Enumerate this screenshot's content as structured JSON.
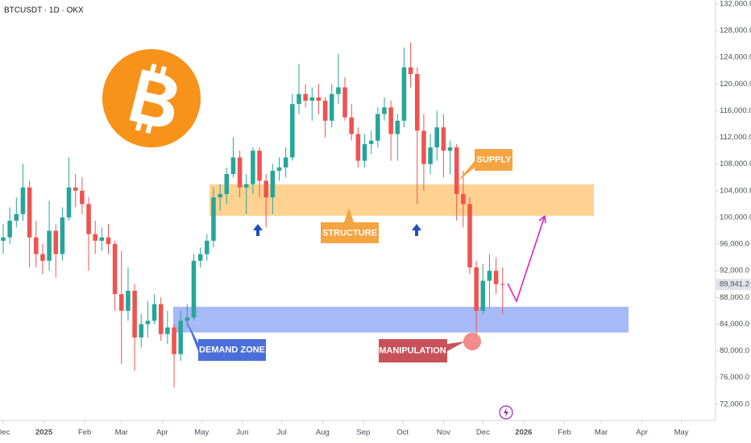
{
  "chart_data": {
    "type": "candlestick",
    "title": "BTCUSDT · 1D · OKX",
    "categories": [
      null,
      null,
      null,
      null,
      null,
      null,
      null,
      null,
      null,
      null,
      null,
      null,
      null,
      null,
      null,
      null,
      null,
      null,
      null,
      null,
      null,
      null,
      null,
      null,
      null,
      null,
      null,
      null,
      null,
      null,
      null,
      null,
      null,
      null,
      null,
      null,
      null,
      null,
      null,
      null,
      null,
      null,
      null,
      null,
      null,
      null,
      null,
      null,
      null,
      null,
      null,
      null,
      null,
      null,
      null,
      null,
      null,
      null,
      null,
      null,
      null,
      null,
      null,
      null,
      null,
      null,
      null,
      null,
      null,
      null,
      null,
      null,
      null,
      null,
      null,
      null,
      null
    ],
    "open": [
      96500,
      97000,
      99500,
      100500,
      104500,
      97000,
      94500,
      93500,
      98000,
      94500,
      100000,
      104500,
      104000,
      102000,
      97500,
      96500,
      97000,
      96000,
      88500,
      86000,
      89000,
      82000,
      84000,
      84500,
      87000,
      82500,
      83500,
      79500,
      84500,
      85000,
      93500,
      94500,
      96500,
      103000,
      103500,
      106500,
      109000,
      104500,
      105000,
      110000,
      105500,
      103000,
      107000,
      107500,
      109000,
      117000,
      118500,
      117500,
      118000,
      117500,
      114500,
      118500,
      119500,
      115000,
      112500,
      108500,
      111000,
      111500,
      115500,
      116500,
      112500,
      114500,
      122500,
      121500,
      113000,
      108000,
      110500,
      113500,
      110000,
      110500,
      103500,
      102000,
      92500,
      86000,
      90500,
      92000,
      90000
    ],
    "high": [
      99000,
      101500,
      103000,
      108000,
      105500,
      99500,
      96000,
      102500,
      99000,
      101500,
      109000,
      106500,
      106000,
      103000,
      99500,
      98500,
      99000,
      96500,
      95000,
      92500,
      90000,
      85500,
      87500,
      88500,
      88000,
      86000,
      84000,
      86000,
      87000,
      94500,
      95500,
      97500,
      104500,
      105000,
      107500,
      112000,
      110000,
      106500,
      110500,
      110500,
      106500,
      108000,
      109000,
      110500,
      118500,
      123000,
      120000,
      119500,
      120000,
      118000,
      120000,
      124500,
      121000,
      117000,
      113500,
      112500,
      113000,
      116500,
      118000,
      117500,
      115500,
      125500,
      126200,
      122500,
      115500,
      112500,
      116000,
      115500,
      111500,
      111000,
      107000,
      103000,
      93500,
      93000,
      94500,
      94000,
      92500
    ],
    "low": [
      94500,
      96000,
      98500,
      99500,
      92500,
      92500,
      91500,
      92000,
      91000,
      93500,
      99500,
      101500,
      100500,
      92000,
      94500,
      95000,
      94500,
      86000,
      78000,
      84500,
      77000,
      80500,
      82000,
      84000,
      81500,
      81000,
      74500,
      78500,
      83500,
      84500,
      92500,
      93500,
      95500,
      101000,
      102000,
      106000,
      103000,
      100500,
      103500,
      103000,
      98500,
      100500,
      105500,
      106000,
      108500,
      115500,
      116500,
      114500,
      115500,
      112000,
      113500,
      117000,
      114500,
      111500,
      107500,
      107500,
      109500,
      110500,
      114500,
      108500,
      108500,
      113500,
      119500,
      102000,
      104000,
      106500,
      108500,
      106000,
      106500,
      99500,
      98500,
      91500,
      81000,
      85500,
      86500,
      88500,
      85500
    ],
    "close": [
      97000,
      99500,
      100500,
      104500,
      97000,
      94500,
      93500,
      98000,
      94500,
      100000,
      104500,
      104000,
      102000,
      97500,
      96500,
      97000,
      96000,
      88500,
      86000,
      89000,
      82000,
      84000,
      84500,
      87000,
      82500,
      83500,
      79500,
      84500,
      85000,
      93500,
      94500,
      96500,
      103000,
      103500,
      106500,
      109000,
      104500,
      105000,
      110000,
      105500,
      103000,
      107000,
      107500,
      109000,
      117000,
      118500,
      117500,
      118000,
      117500,
      114500,
      118500,
      119500,
      115000,
      112500,
      108500,
      111000,
      111500,
      115500,
      116500,
      112500,
      114500,
      122500,
      121500,
      113000,
      108000,
      110500,
      113500,
      110000,
      110500,
      103500,
      102000,
      92500,
      86000,
      90500,
      92000,
      90000,
      89941.2
    ],
    "up_color": "#26a69a",
    "down_color": "#ef5350",
    "xlim": [
      -0.49,
      108.4
    ],
    "xticks": [
      {
        "value": 0,
        "label": "Dec"
      },
      {
        "value": 6.2,
        "label": "2025"
      },
      {
        "value": 12.4,
        "label": "Feb"
      },
      {
        "value": 18,
        "label": "Mar"
      },
      {
        "value": 24.2,
        "label": "Apr"
      },
      {
        "value": 30.2,
        "label": "May"
      },
      {
        "value": 36.4,
        "label": "Jun"
      },
      {
        "value": 42.4,
        "label": "Jul"
      },
      {
        "value": 48.6,
        "label": "Aug"
      },
      {
        "value": 54.8,
        "label": "Sep"
      },
      {
        "value": 60.8,
        "label": "Oct"
      },
      {
        "value": 67,
        "label": "Nov"
      },
      {
        "value": 73,
        "label": "Dec"
      },
      {
        "value": 79.2,
        "label": "2026"
      },
      {
        "value": 85.4,
        "label": "Feb"
      },
      {
        "value": 91,
        "label": "Mar"
      },
      {
        "value": 97.2,
        "label": "Apr"
      },
      {
        "value": 103.2,
        "label": "May"
      }
    ],
    "ylim": [
      69800,
      132600
    ],
    "yticks": [
      {
        "value": 72000,
        "label": "72,000.0"
      },
      {
        "value": 76000,
        "label": "76,000.0"
      },
      {
        "value": 80000,
        "label": "80,000.0"
      },
      {
        "value": 84000,
        "label": "84,000.0"
      },
      {
        "value": 88000,
        "label": "88,000.0"
      },
      {
        "value": 92000,
        "label": "92,000.0"
      },
      {
        "value": 96000,
        "label": "96,000.0"
      },
      {
        "value": 100000,
        "label": "100,000.0"
      },
      {
        "value": 104000,
        "label": "104,000.0"
      },
      {
        "value": 108000,
        "label": "108,000.0"
      },
      {
        "value": 112000,
        "label": "112,000.0"
      },
      {
        "value": 116000,
        "label": "116,000.0"
      },
      {
        "value": 120000,
        "label": "120,000.0"
      },
      {
        "value": 124000,
        "label": "124,000.0"
      },
      {
        "value": 128000,
        "label": "128,000.0"
      },
      {
        "value": 132000,
        "label": "132,000.0"
      }
    ],
    "grid": false,
    "last_price": {
      "value": 89941.2,
      "label": "89,941.2"
    },
    "zones": [
      {
        "name": "STRUCTURE",
        "range": [
          100250,
          104960
        ],
        "color": "#ffb74d"
      },
      {
        "name": "DEMAND ZONE",
        "range": [
          82750,
          86600
        ],
        "color": "#6d8ff0"
      }
    ],
    "annotations": [
      "SUPPLY",
      "MANIPULATION"
    ]
  }
}
